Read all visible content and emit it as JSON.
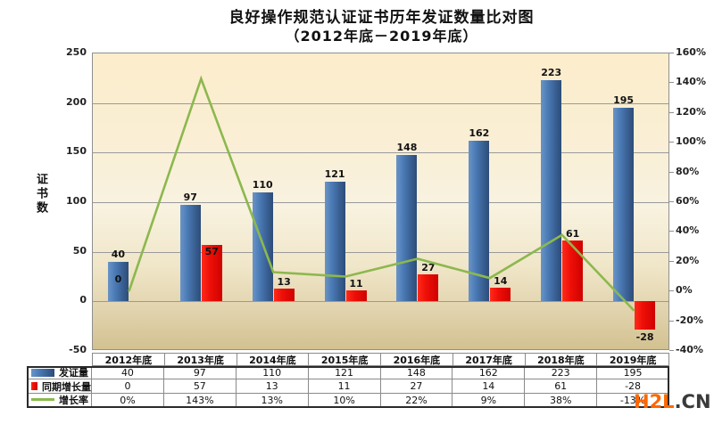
{
  "title": {
    "line1": "良好操作规范认证证书历年发证数量比对图",
    "line2": "（2012年底－2019年底）"
  },
  "watermark": {
    "text_primary": "H2L",
    "text_secondary": ".CN",
    "primary_color": "#ff6600",
    "secondary_color": "#3a3a3a"
  },
  "chart_data": {
    "type": "bar",
    "subtype": "combo-bar-line-dual-axis",
    "categories": [
      "2012年底",
      "2013年底",
      "2014年底",
      "2015年底",
      "2016年底",
      "2017年底",
      "2018年底",
      "2019年底"
    ],
    "series": [
      {
        "name": "发证量",
        "type": "bar",
        "axis": "left",
        "color": "#3c6da8",
        "values": [
          40,
          97,
          110,
          121,
          148,
          162,
          223,
          195
        ],
        "display": [
          "40",
          "97",
          "110",
          "121",
          "148",
          "162",
          "223",
          "195"
        ]
      },
      {
        "name": "同期增长量",
        "type": "bar",
        "axis": "left",
        "color": "#e60000",
        "values": [
          0,
          57,
          13,
          11,
          27,
          14,
          61,
          -28
        ],
        "display": [
          "0",
          "57",
          "13",
          "11",
          "27",
          "14",
          "61",
          "-28"
        ],
        "label_positions": [
          "in-plot-low",
          "inside-top",
          "above",
          "above",
          "above",
          "above",
          "above",
          "below"
        ]
      },
      {
        "name": "增长率",
        "type": "line",
        "axis": "right",
        "color": "#8cb84e",
        "values_percent": [
          0,
          143,
          13,
          10,
          22,
          9,
          38,
          -13
        ],
        "display": [
          "0%",
          "143%",
          "13%",
          "10%",
          "22%",
          "9%",
          "38%",
          "-13%"
        ]
      }
    ],
    "left_axis": {
      "title": "证书数",
      "min": -50,
      "max": 250,
      "step": 50,
      "tick_labels": [
        "250",
        "200",
        "150",
        "100",
        "50",
        "0",
        "-50"
      ]
    },
    "right_axis": {
      "min": -40,
      "max": 160,
      "step": 20,
      "tick_labels": [
        "160%",
        "140%",
        "120%",
        "100%",
        "80%",
        "60%",
        "40%",
        "20%",
        "0%",
        "-20%",
        "-40%"
      ]
    },
    "gridlines": true,
    "legend_position": "table-left",
    "plot_bg_gradient": [
      "#fcedcc",
      "#f8f2e0",
      "#d2c190"
    ]
  }
}
